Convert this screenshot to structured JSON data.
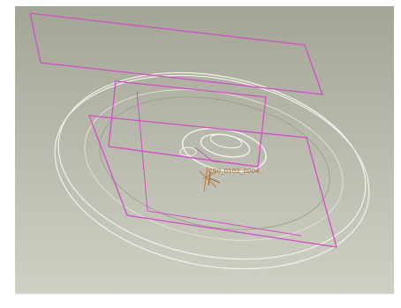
{
  "viewport": {
    "background_top": "#a3a596",
    "background_bottom": "#cfcfc4",
    "datum_plane_color": "#d24fc6",
    "edge_color": "#f2f2ea",
    "csys_label_color": "#a86a28"
  },
  "scene": {
    "datum_planes": [
      "plane-top",
      "plane-middle",
      "plane-front"
    ],
    "coordinate_system": {
      "label": "CS0_0102_0004",
      "icon": "coordinate-system-icon"
    }
  }
}
